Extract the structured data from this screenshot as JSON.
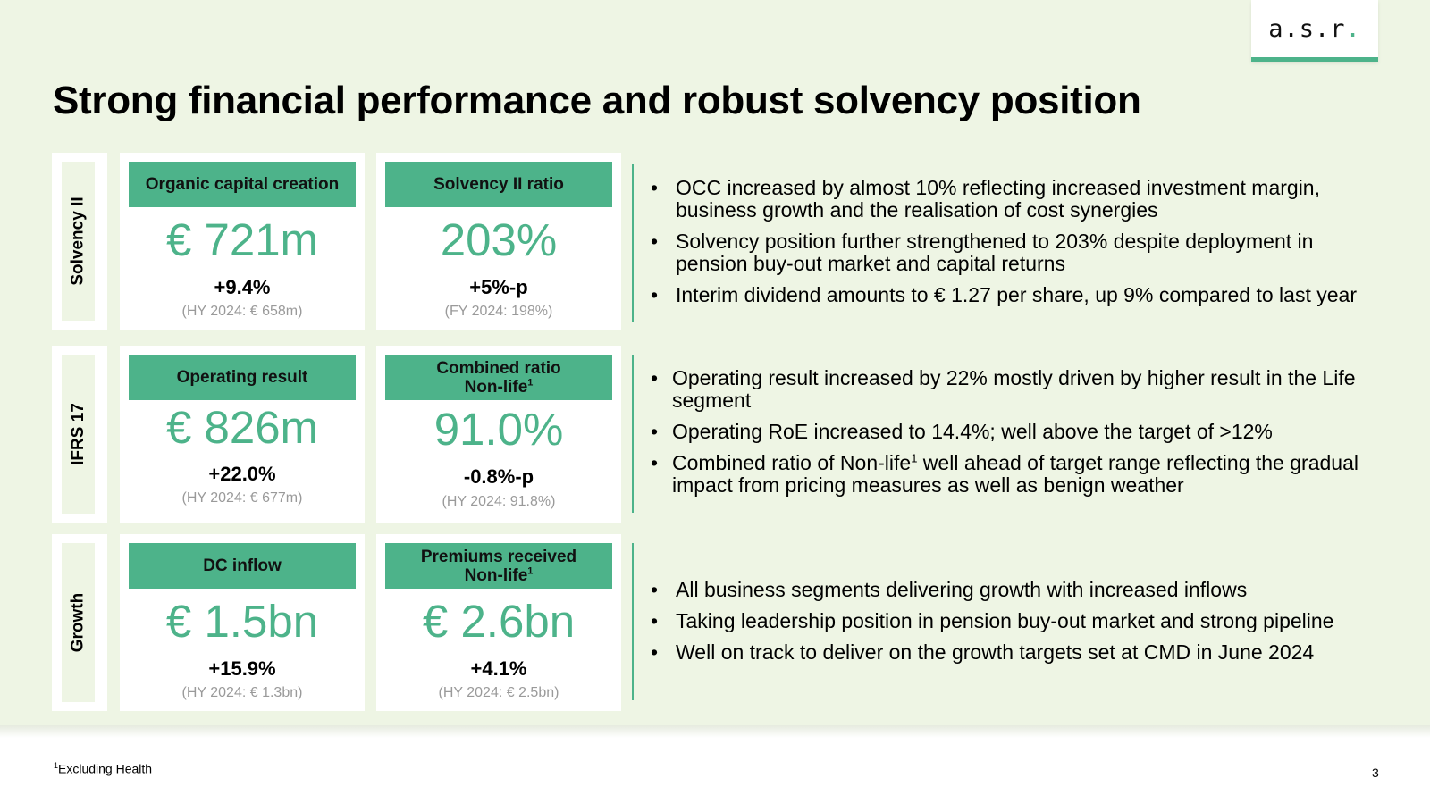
{
  "logo": {
    "text": "a.s.r",
    "dot": "."
  },
  "title": "Strong financial performance and robust solvency position",
  "rows": [
    {
      "section": "Solvency II",
      "kpis": [
        {
          "head": "Organic capital creation",
          "sup": "",
          "value": "€ 721m",
          "change": "+9.4%",
          "compare": "(HY 2024: € 658m)"
        },
        {
          "head": "Solvency II ratio",
          "sup": "",
          "value": "203%",
          "change": "+5%-p",
          "compare": "(FY 2024: 198%)"
        }
      ],
      "bullets": [
        "OCC increased by almost 10% reflecting increased investment margin, business growth and the realisation of cost synergies",
        "Solvency position further strengthened to 203% despite deployment in pension buy-out market and capital returns",
        "Interim dividend amounts to € 1.27 per share, up 9% compared to last year"
      ]
    },
    {
      "section": "IFRS 17",
      "kpis": [
        {
          "head": "Operating result",
          "sup": "",
          "value": "€ 826m",
          "change": "+22.0%",
          "compare": "(HY 2024: € 677m)"
        },
        {
          "head_line1": "Combined ratio",
          "head_line2": "Non-life",
          "sup": "1",
          "value": "91.0%",
          "change": "-0.8%-p",
          "compare": "(HY 2024: 91.8%)"
        }
      ],
      "bullets": [
        "Operating result increased by 22% mostly driven by higher result in the Life segment",
        "Operating RoE increased to 14.4%; well above the target of >12%"
      ],
      "bullet3_a": "Combined ratio of Non-life",
      "bullet3_sup": "1",
      "bullet3_b": " well ahead of target range reflecting the gradual impact from pricing measures as well as benign weather"
    },
    {
      "section": "Growth",
      "kpis": [
        {
          "head": "DC inflow",
          "sup": "",
          "value": "€ 1.5bn",
          "change": "+15.9%",
          "compare": "(HY 2024: € 1.3bn)"
        },
        {
          "head_line1": "Premiums received",
          "head_line2": "Non-life",
          "sup": "1",
          "value": "€ 2.6bn",
          "change": "+4.1%",
          "compare": "(HY 2024: € 2.5bn)"
        }
      ],
      "bullets": [
        "All business segments delivering growth with increased inflows",
        "Taking leadership position in pension buy-out market and strong pipeline",
        "Well on track to deliver on the growth targets set at CMD in June 2024"
      ]
    }
  ],
  "footnote": {
    "sup": "1",
    "text": "Excluding Health"
  },
  "page_number": "3",
  "colors": {
    "accent": "#4db38a",
    "background": "#eef5e4",
    "muted": "#9a9a9a"
  }
}
